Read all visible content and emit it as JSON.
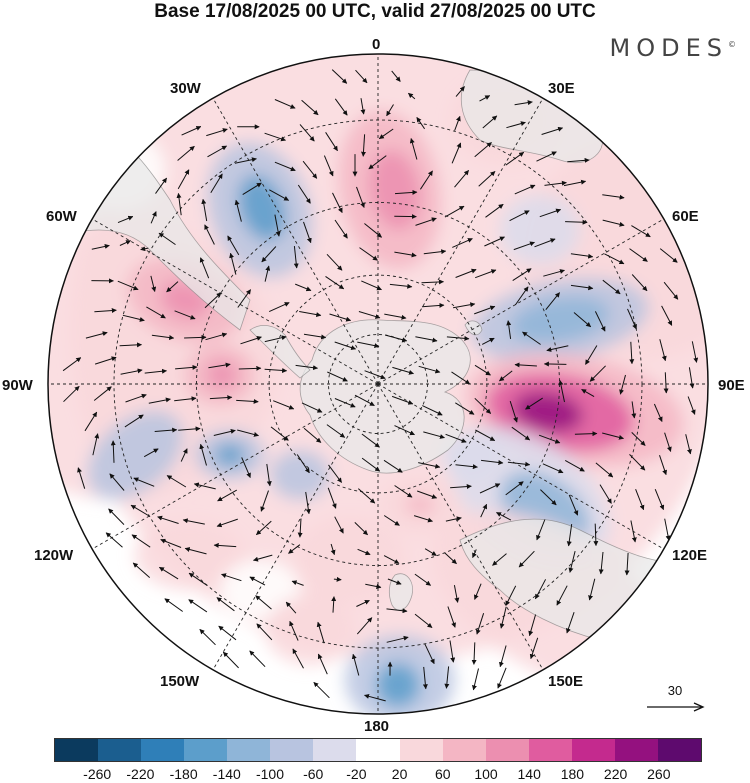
{
  "title": "Base 17/08/2025 00 UTC, valid 27/08/2025 00 UTC",
  "brand": "MODES",
  "brand_mark": "©",
  "longitude_labels": {
    "top": "0",
    "top_right": "30E",
    "right_upper": "60E",
    "right": "90E",
    "right_lower": "120E",
    "bottom_right": "150E",
    "bottom": "180",
    "bottom_left": "150W",
    "left_lower": "120W",
    "left": "90W",
    "left_upper": "60W",
    "top_left": "30W"
  },
  "wind_reference": {
    "value": "30"
  },
  "colorbar": {
    "colors": [
      "#0b3a5e",
      "#1b5e8f",
      "#2f7fb8",
      "#5c9ecb",
      "#8fb5d8",
      "#b8c4e0",
      "#dcdcec",
      "#ffffff",
      "#f9d8dc",
      "#f4b6c4",
      "#ec8fb0",
      "#e05c9f",
      "#c42a8e",
      "#94117f",
      "#5e0a6e"
    ],
    "ticks": [
      "-260",
      "-220",
      "-180",
      "-140",
      "-100",
      "-60",
      "-20",
      "20",
      "60",
      "100",
      "140",
      "180",
      "220",
      "260"
    ]
  },
  "colors": {
    "land": "#e9e9e9",
    "coast": "#8a8a8a",
    "grid": "#222222",
    "arrow": "#111111"
  }
}
